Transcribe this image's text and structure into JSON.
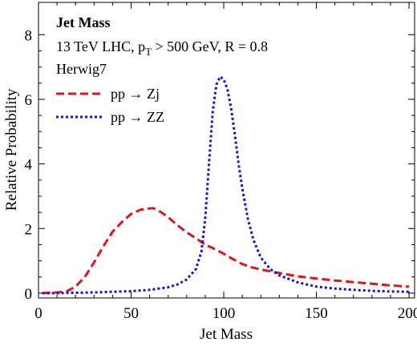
{
  "chart_data": {
    "type": "line",
    "title": "",
    "xlabel": "Jet Mass",
    "ylabel": "Relative Probability",
    "xlim": [
      0,
      203
    ],
    "ylim": [
      -0.15,
      9.0
    ],
    "xticks": [
      0,
      50,
      100,
      150,
      200
    ],
    "yticks": [
      0,
      2,
      4,
      6,
      8
    ],
    "grid": false,
    "annotations": {
      "title": "Jet Mass",
      "line1_prefix": "13 TeV LHC, p",
      "line1_sub": "T",
      "line1_suffix": " > 500 GeV, R = 0.8",
      "line2": "Herwig7"
    },
    "legend_position": "top-left",
    "series": [
      {
        "name": "pp → Zj",
        "color": "#e0141a",
        "dash": "dashed",
        "x": [
          2,
          10,
          15,
          20,
          25,
          30,
          35,
          40,
          45,
          50,
          55,
          60,
          62,
          65,
          70,
          75,
          80,
          85,
          90,
          95,
          100,
          105,
          110,
          115,
          120,
          130,
          140,
          150,
          160,
          170,
          180,
          190,
          200
        ],
        "y": [
          0.0,
          0.02,
          0.05,
          0.2,
          0.5,
          0.95,
          1.45,
          1.9,
          2.2,
          2.45,
          2.58,
          2.62,
          2.63,
          2.55,
          2.35,
          2.1,
          1.88,
          1.7,
          1.5,
          1.37,
          1.22,
          1.05,
          0.9,
          0.8,
          0.73,
          0.62,
          0.52,
          0.45,
          0.39,
          0.34,
          0.29,
          0.24,
          0.2
        ]
      },
      {
        "name": "pp → ZZ",
        "color": "#1414d2",
        "dash": "dotted",
        "x": [
          2,
          10,
          20,
          30,
          40,
          50,
          60,
          70,
          75,
          80,
          85,
          88,
          90,
          92,
          94,
          96,
          98,
          100,
          102,
          104,
          106,
          108,
          110,
          113,
          116,
          120,
          125,
          130,
          140,
          150,
          160,
          170,
          180,
          190,
          200
        ],
        "y": [
          0.0,
          0.0,
          0.01,
          0.02,
          0.04,
          0.06,
          0.1,
          0.18,
          0.27,
          0.42,
          0.75,
          1.3,
          2.3,
          4.0,
          5.6,
          6.45,
          6.7,
          6.62,
          6.3,
          5.7,
          4.9,
          4.0,
          3.25,
          2.3,
          1.65,
          1.1,
          0.75,
          0.55,
          0.33,
          0.2,
          0.14,
          0.1,
          0.07,
          0.05,
          0.04
        ]
      }
    ]
  }
}
